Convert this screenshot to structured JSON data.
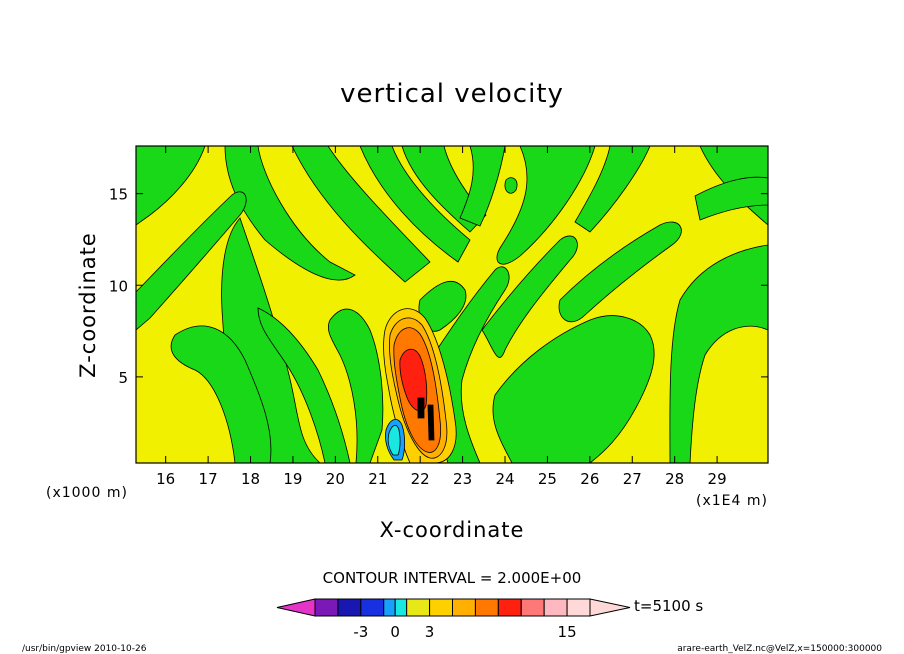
{
  "chart_data": {
    "type": "heatmap",
    "title": "vertical velocity",
    "xlabel": "X-coordinate",
    "ylabel": "Z-coordinate",
    "x_unit_label": "(x1E4 m)",
    "y_unit_label": "(x1000 m)",
    "xlim": [
      15.3,
      30.2
    ],
    "ylim": [
      0.3,
      17.6
    ],
    "x_ticks": [
      16,
      17,
      18,
      19,
      20,
      21,
      22,
      23,
      24,
      25,
      26,
      27,
      28,
      29
    ],
    "y_ticks": [
      5,
      10,
      15
    ],
    "contour_interval_text": "CONTOUR INTERVAL = 2.000E+00",
    "time_text": "t=5100 s",
    "colorbar": {
      "boundaries": [
        -7,
        -5,
        -3,
        -1,
        0,
        1,
        3,
        5,
        7,
        9,
        11,
        13,
        15,
        17
      ],
      "colors": [
        "#e633c8",
        "#7a18b8",
        "#1818b0",
        "#1830e0",
        "#18a0ff",
        "#18e8e0",
        "#e8e818",
        "#ffd000",
        "#ffb000",
        "#ff7800",
        "#ff2010",
        "#ff7878",
        "#ffb8c0",
        "#ffd8d8"
      ],
      "labels": [
        {
          "value": -3,
          "text": "-3"
        },
        {
          "value": 0,
          "text": "0"
        },
        {
          "value": 3,
          "text": "3"
        },
        {
          "value": 15,
          "text": "15"
        }
      ]
    },
    "features": [
      {
        "kind": "updraft-core",
        "x": 21.6,
        "z": 5.5,
        "max_value": 13
      },
      {
        "kind": "downdraft",
        "x": 21.3,
        "z": 1.2,
        "min_value": -3
      },
      {
        "kind": "wave-band",
        "orientation": "diagonal",
        "value": 0
      }
    ]
  },
  "footer": {
    "left": "/usr/bin/gpview  2010-10-26",
    "right": "arare-earth_VelZ.nc@VelZ,x=150000:300000"
  }
}
